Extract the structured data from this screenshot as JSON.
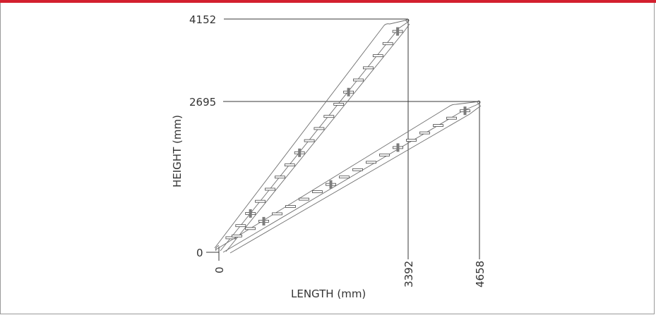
{
  "colors": {
    "accent_bar": "#d3202e",
    "frame": "#9a9a9a",
    "text": "#333333"
  },
  "diagram": {
    "y_axis_label": "HEIGHT (mm)",
    "x_axis_label": "LENGTH (mm)",
    "height_labels": [
      "4152",
      "2695",
      "0"
    ],
    "length_labels": [
      "0",
      "3392",
      "4658"
    ]
  }
}
